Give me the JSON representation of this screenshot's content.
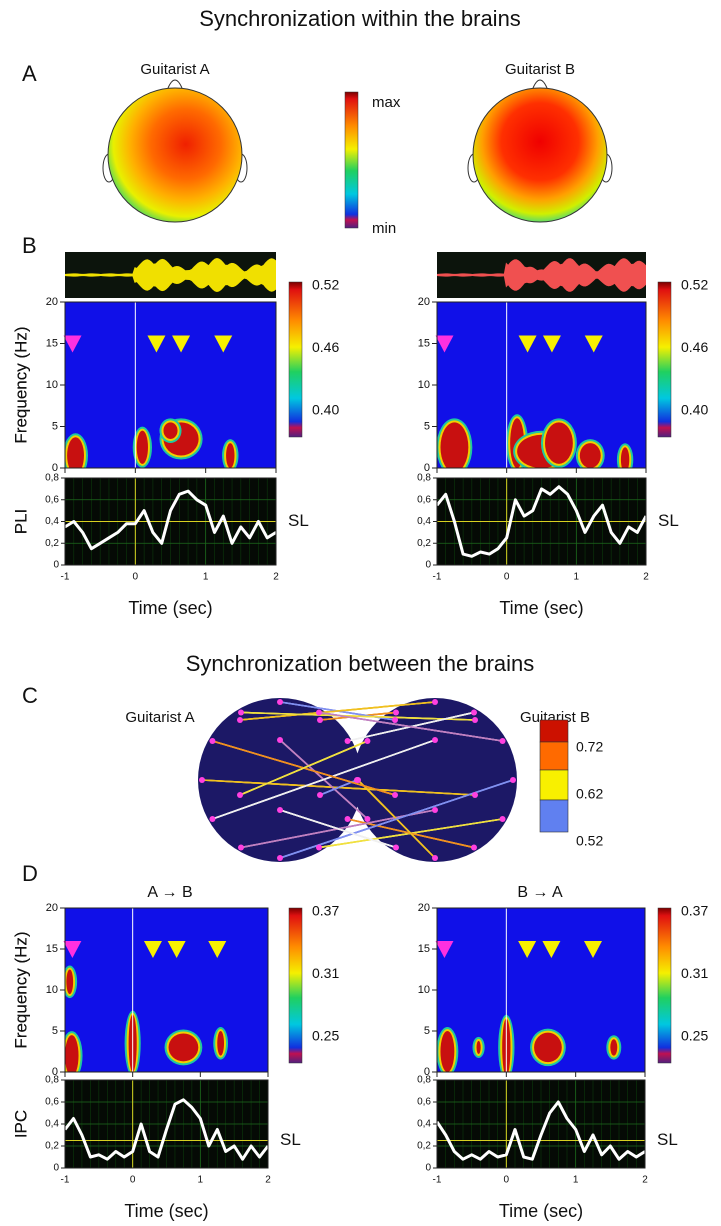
{
  "titles": {
    "within": "Synchronization within the brains",
    "between": "Synchronization between the brains"
  },
  "panel_labels": {
    "a": "A",
    "b": "B",
    "c": "C",
    "d": "D"
  },
  "panel_a": {
    "heads": [
      "Guitarist A",
      "Guitarist B"
    ],
    "scale_max": "max",
    "scale_min": "min"
  },
  "panel_c": {
    "heads": [
      "Guitarist A",
      "Guitarist B"
    ],
    "clim": [
      0.52,
      0.72
    ],
    "cticks": [
      0.72,
      0.62,
      0.52
    ]
  },
  "panel_d": {
    "directions": [
      "A → B",
      "B → A"
    ]
  },
  "chart_data": [
    {
      "type": "heatmap",
      "ylabel": "Frequency (Hz)",
      "ylim": [
        0,
        20
      ],
      "yticks": [
        0,
        5,
        10,
        15,
        20
      ],
      "xlim": [
        -1,
        2
      ],
      "xticks": [
        -1,
        0,
        1,
        2
      ],
      "clim": [
        0.4,
        0.52
      ],
      "cticks": [
        0.52,
        0.46,
        {
          "value": 0.4,
          "label": "0.40"
        }
      ]
    },
    {
      "type": "heatmap",
      "ylabel": "Frequency (Hz)",
      "ylim": [
        0,
        20
      ],
      "yticks": [
        0,
        5,
        10,
        15,
        20
      ],
      "xlim": [
        -1,
        2
      ],
      "xticks": [
        -1,
        0,
        1,
        2
      ],
      "clim": [
        0.4,
        0.52
      ],
      "cticks": [
        0.52,
        0.46,
        {
          "value": 0.4,
          "label": "0.40"
        }
      ]
    },
    {
      "type": "line",
      "ylabel": "PLI",
      "xlabel": "Time (sec)",
      "sl": 0.4,
      "sl_label": "SL",
      "ylim": [
        0,
        0.8
      ],
      "yticks": [
        0,
        {
          "value": 0.2,
          "label": "0,2"
        },
        {
          "value": 0.4,
          "label": "0,4"
        },
        {
          "value": 0.6,
          "label": "0,6"
        },
        {
          "value": 0.8,
          "label": "0,8"
        }
      ],
      "xlim": [
        -1,
        2
      ],
      "xticks": [
        -1,
        0,
        1,
        2
      ],
      "x": [
        -1,
        -0.875,
        -0.75,
        -0.625,
        -0.5,
        -0.375,
        -0.25,
        -0.125,
        0,
        0.125,
        0.25,
        0.375,
        0.5,
        0.625,
        0.75,
        0.875,
        1,
        1.125,
        1.25,
        1.375,
        1.5,
        1.625,
        1.75,
        1.875,
        2
      ],
      "values": [
        0.35,
        0.4,
        0.3,
        0.15,
        0.2,
        0.25,
        0.3,
        0.38,
        0.38,
        0.5,
        0.3,
        0.2,
        0.5,
        0.65,
        0.68,
        0.6,
        0.55,
        0.3,
        0.45,
        0.2,
        0.35,
        0.25,
        0.4,
        0.25,
        0.3
      ]
    },
    {
      "type": "line",
      "ylabel": "PLI",
      "xlabel": "Time (sec)",
      "sl": 0.4,
      "sl_label": "SL",
      "ylim": [
        0,
        0.8
      ],
      "yticks": [
        0,
        {
          "value": 0.2,
          "label": "0,2"
        },
        {
          "value": 0.4,
          "label": "0,4"
        },
        {
          "value": 0.6,
          "label": "0,6"
        },
        {
          "value": 0.8,
          "label": "0,8"
        }
      ],
      "xlim": [
        -1,
        2
      ],
      "xticks": [
        -1,
        0,
        1,
        2
      ],
      "x": [
        -1,
        -0.875,
        -0.75,
        -0.625,
        -0.5,
        -0.375,
        -0.25,
        -0.125,
        0,
        0.125,
        0.25,
        0.375,
        0.5,
        0.625,
        0.75,
        0.875,
        1,
        1.125,
        1.25,
        1.375,
        1.5,
        1.625,
        1.75,
        1.875,
        2
      ],
      "values": [
        0.55,
        0.65,
        0.4,
        0.1,
        0.08,
        0.12,
        0.1,
        0.15,
        0.25,
        0.6,
        0.45,
        0.5,
        0.7,
        0.65,
        0.72,
        0.65,
        0.5,
        0.3,
        0.45,
        0.55,
        0.3,
        0.2,
        0.35,
        0.3,
        0.45
      ]
    },
    {
      "type": "heatmap",
      "ylabel": "Frequency (Hz)",
      "ylim": [
        0,
        20
      ],
      "yticks": [
        0,
        5,
        10,
        15,
        20
      ],
      "xlim": [
        -1,
        2
      ],
      "xticks": [
        -1,
        0,
        1,
        2
      ],
      "clim": [
        0.25,
        0.37
      ],
      "cticks": [
        0.37,
        0.31,
        0.25
      ]
    },
    {
      "type": "heatmap",
      "ylabel": "Frequency (Hz)",
      "ylim": [
        0,
        20
      ],
      "yticks": [
        0,
        5,
        10,
        15,
        20
      ],
      "xlim": [
        -1,
        2
      ],
      "xticks": [
        -1,
        0,
        1,
        2
      ],
      "clim": [
        0.25,
        0.37
      ],
      "cticks": [
        0.37,
        0.31,
        0.25
      ]
    },
    {
      "type": "line",
      "ylabel": "IPC",
      "xlabel": "Time (sec)",
      "sl": 0.25,
      "sl_label": "SL",
      "ylim": [
        0,
        0.8
      ],
      "yticks": [
        0,
        {
          "value": 0.2,
          "label": "0,2"
        },
        {
          "value": 0.4,
          "label": "0,4"
        },
        {
          "value": 0.6,
          "label": "0,6"
        },
        {
          "value": 0.8,
          "label": "0,8"
        }
      ],
      "xlim": [
        -1,
        2
      ],
      "xticks": [
        -1,
        0,
        1,
        2
      ],
      "x": [
        -1,
        -0.875,
        -0.75,
        -0.625,
        -0.5,
        -0.375,
        -0.25,
        -0.125,
        0,
        0.125,
        0.25,
        0.375,
        0.5,
        0.625,
        0.75,
        0.875,
        1,
        1.125,
        1.25,
        1.375,
        1.5,
        1.625,
        1.75,
        1.875,
        2
      ],
      "values": [
        0.35,
        0.45,
        0.3,
        0.1,
        0.12,
        0.08,
        0.15,
        0.1,
        0.15,
        0.4,
        0.15,
        0.1,
        0.35,
        0.58,
        0.62,
        0.55,
        0.45,
        0.2,
        0.35,
        0.15,
        0.2,
        0.08,
        0.2,
        0.1,
        0.2
      ]
    },
    {
      "type": "line",
      "ylabel": "IPC",
      "xlabel": "Time (sec)",
      "sl": 0.25,
      "sl_label": "SL",
      "ylim": [
        0,
        0.8
      ],
      "yticks": [
        0,
        {
          "value": 0.2,
          "label": "0,2"
        },
        {
          "value": 0.4,
          "label": "0,4"
        },
        {
          "value": 0.6,
          "label": "0,6"
        },
        {
          "value": 0.8,
          "label": "0,8"
        }
      ],
      "xlim": [
        -1,
        2
      ],
      "xticks": [
        -1,
        0,
        1,
        2
      ],
      "x": [
        -1,
        -0.875,
        -0.75,
        -0.625,
        -0.5,
        -0.375,
        -0.25,
        -0.125,
        0,
        0.125,
        0.25,
        0.375,
        0.5,
        0.625,
        0.75,
        0.875,
        1,
        1.125,
        1.25,
        1.375,
        1.5,
        1.625,
        1.75,
        1.875,
        2
      ],
      "values": [
        0.42,
        0.3,
        0.15,
        0.08,
        0.12,
        0.08,
        0.15,
        0.1,
        0.12,
        0.35,
        0.1,
        0.08,
        0.3,
        0.5,
        0.6,
        0.45,
        0.35,
        0.15,
        0.3,
        0.12,
        0.2,
        0.08,
        0.15,
        0.1,
        0.15
      ]
    }
  ]
}
